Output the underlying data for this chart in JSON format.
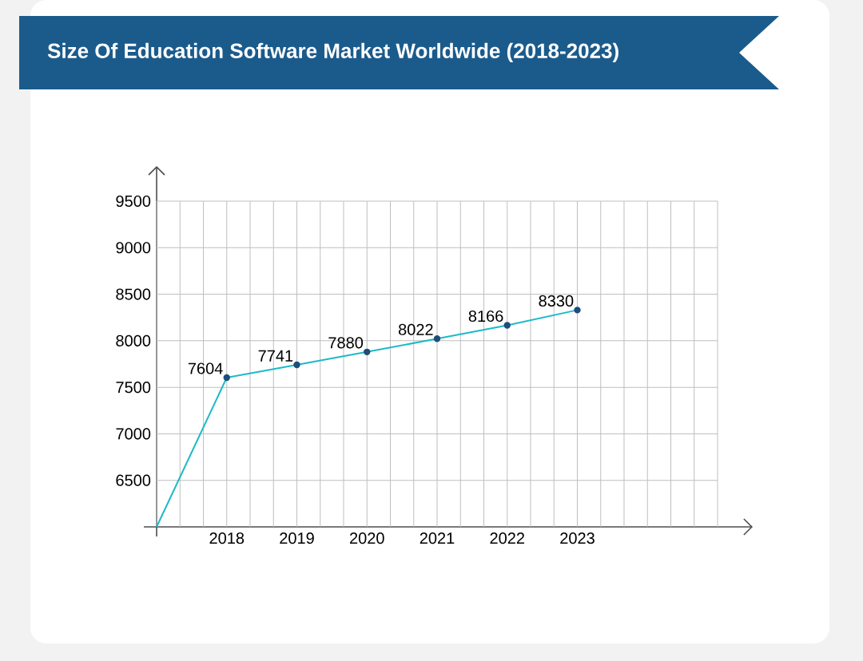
{
  "chart_data": {
    "type": "line",
    "title": "Size Of Education Software Market Worldwide (2018-2023)",
    "categories": [
      null,
      "2018",
      "2019",
      "2020",
      "2021",
      "2022",
      "2023"
    ],
    "values": [
      6000,
      7604,
      7741,
      7880,
      8022,
      8166,
      8330
    ],
    "value_labels": [
      null,
      "7604",
      "7741",
      "7880",
      "8022",
      "8166",
      "8330"
    ],
    "color": "#1cbac8",
    "ylim": [
      6000,
      9500
    ],
    "yticks": [
      6500,
      7000,
      7500,
      8000,
      8500,
      9000,
      9500
    ],
    "grid": true,
    "marker": "circle",
    "line_style": "solid"
  }
}
